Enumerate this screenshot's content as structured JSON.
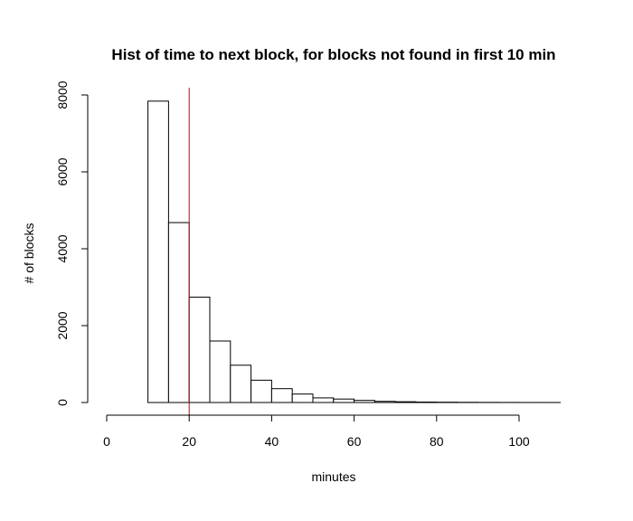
{
  "chart_data": {
    "type": "bar",
    "title": "Hist of time to next block, for blocks not found in first 10 min",
    "xlabel": "minutes",
    "ylabel": "# of blocks",
    "xlim": [
      0,
      110
    ],
    "ylim": [
      0,
      8000
    ],
    "x_ticks": [
      0,
      20,
      40,
      60,
      80,
      100
    ],
    "y_ticks": [
      0,
      2000,
      4000,
      6000,
      8000
    ],
    "bins": [
      {
        "start": 10,
        "end": 15,
        "count": 7840
      },
      {
        "start": 15,
        "end": 20,
        "count": 4680
      },
      {
        "start": 20,
        "end": 25,
        "count": 2740
      },
      {
        "start": 25,
        "end": 30,
        "count": 1600
      },
      {
        "start": 30,
        "end": 35,
        "count": 970
      },
      {
        "start": 35,
        "end": 40,
        "count": 580
      },
      {
        "start": 40,
        "end": 45,
        "count": 360
      },
      {
        "start": 45,
        "end": 50,
        "count": 220
      },
      {
        "start": 50,
        "end": 55,
        "count": 120
      },
      {
        "start": 55,
        "end": 60,
        "count": 90
      },
      {
        "start": 60,
        "end": 65,
        "count": 55
      },
      {
        "start": 65,
        "end": 70,
        "count": 30
      },
      {
        "start": 70,
        "end": 75,
        "count": 20
      },
      {
        "start": 75,
        "end": 80,
        "count": 12
      },
      {
        "start": 80,
        "end": 85,
        "count": 8
      },
      {
        "start": 85,
        "end": 90,
        "count": 5
      },
      {
        "start": 90,
        "end": 95,
        "count": 3
      },
      {
        "start": 95,
        "end": 100,
        "count": 2
      },
      {
        "start": 100,
        "end": 105,
        "count": 1
      },
      {
        "start": 105,
        "end": 110,
        "count": 1
      }
    ],
    "reference_line": {
      "x": 20,
      "color": "#cc0000"
    },
    "grid": false
  }
}
